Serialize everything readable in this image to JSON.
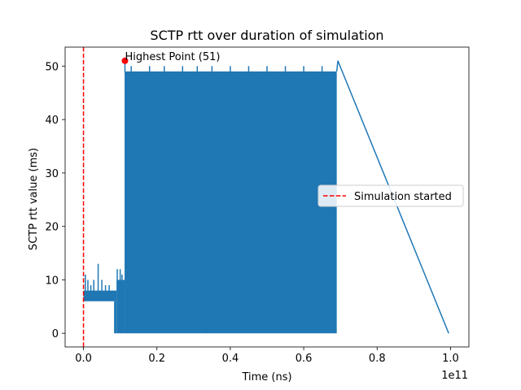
{
  "chart_data": {
    "type": "line",
    "title": "SCTP rtt over duration of simulation",
    "xlabel": "Time (ns)",
    "ylabel": "SCTP rtt value (ms)",
    "x_offset_label": "1e11",
    "xlim": [
      -0.05,
      1.05
    ],
    "ylim": [
      -2.55,
      53.55
    ],
    "x_ticks": [
      0.0,
      0.2,
      0.4,
      0.6,
      0.8,
      1.0
    ],
    "x_tick_labels": [
      "0.0",
      "0.2",
      "0.4",
      "0.6",
      "0.8",
      "1.0"
    ],
    "y_ticks": [
      0,
      10,
      20,
      30,
      40,
      50
    ],
    "y_tick_labels": [
      "0",
      "10",
      "20",
      "30",
      "40",
      "50"
    ],
    "grid": false,
    "legend_position": "center-right",
    "series": [
      {
        "color": "#1f77b4",
        "segments": [
          {
            "x_start": 0.0,
            "x_end": 0.09,
            "band_low": 6,
            "band_high": 8,
            "spikes": [
              [
                0.005,
                11
              ],
              [
                0.012,
                10
              ],
              [
                0.02,
                9
              ],
              [
                0.028,
                10
              ],
              [
                0.04,
                13
              ],
              [
                0.05,
                10
              ],
              [
                0.06,
                9
              ],
              [
                0.07,
                9
              ],
              [
                0.082,
                8
              ],
              [
                0.085,
                0
              ],
              [
                0.088,
                0
              ]
            ]
          },
          {
            "x_start": 0.09,
            "x_end": 0.112,
            "band_low": 0,
            "band_high": 10,
            "spikes": [
              [
                0.092,
                12
              ],
              [
                0.1,
                12
              ],
              [
                0.105,
                11
              ],
              [
                0.108,
                0
              ]
            ]
          },
          {
            "x_start": 0.112,
            "x_end": 0.69,
            "band_low": 0,
            "band_high": 49,
            "spikes": [
              [
                0.113,
                51
              ],
              [
                0.13,
                50
              ],
              [
                0.18,
                50
              ],
              [
                0.22,
                50
              ],
              [
                0.27,
                50
              ],
              [
                0.31,
                50
              ],
              [
                0.35,
                50
              ],
              [
                0.4,
                50
              ],
              [
                0.45,
                50
              ],
              [
                0.5,
                50
              ],
              [
                0.55,
                50
              ],
              [
                0.6,
                50
              ],
              [
                0.65,
                50
              ],
              [
                0.335,
                2
              ]
            ]
          }
        ],
        "tail": [
          [
            0.69,
            49
          ],
          [
            0.693,
            51
          ],
          [
            0.995,
            0
          ]
        ]
      }
    ],
    "annotations": [
      {
        "label": "Highest Point (51)",
        "x": 0.113,
        "y": 51,
        "marker_color": "#ff0000"
      }
    ],
    "vline": {
      "x": 0.0,
      "color": "#ff0000",
      "style": "dashed",
      "label": "Simulation started"
    }
  }
}
